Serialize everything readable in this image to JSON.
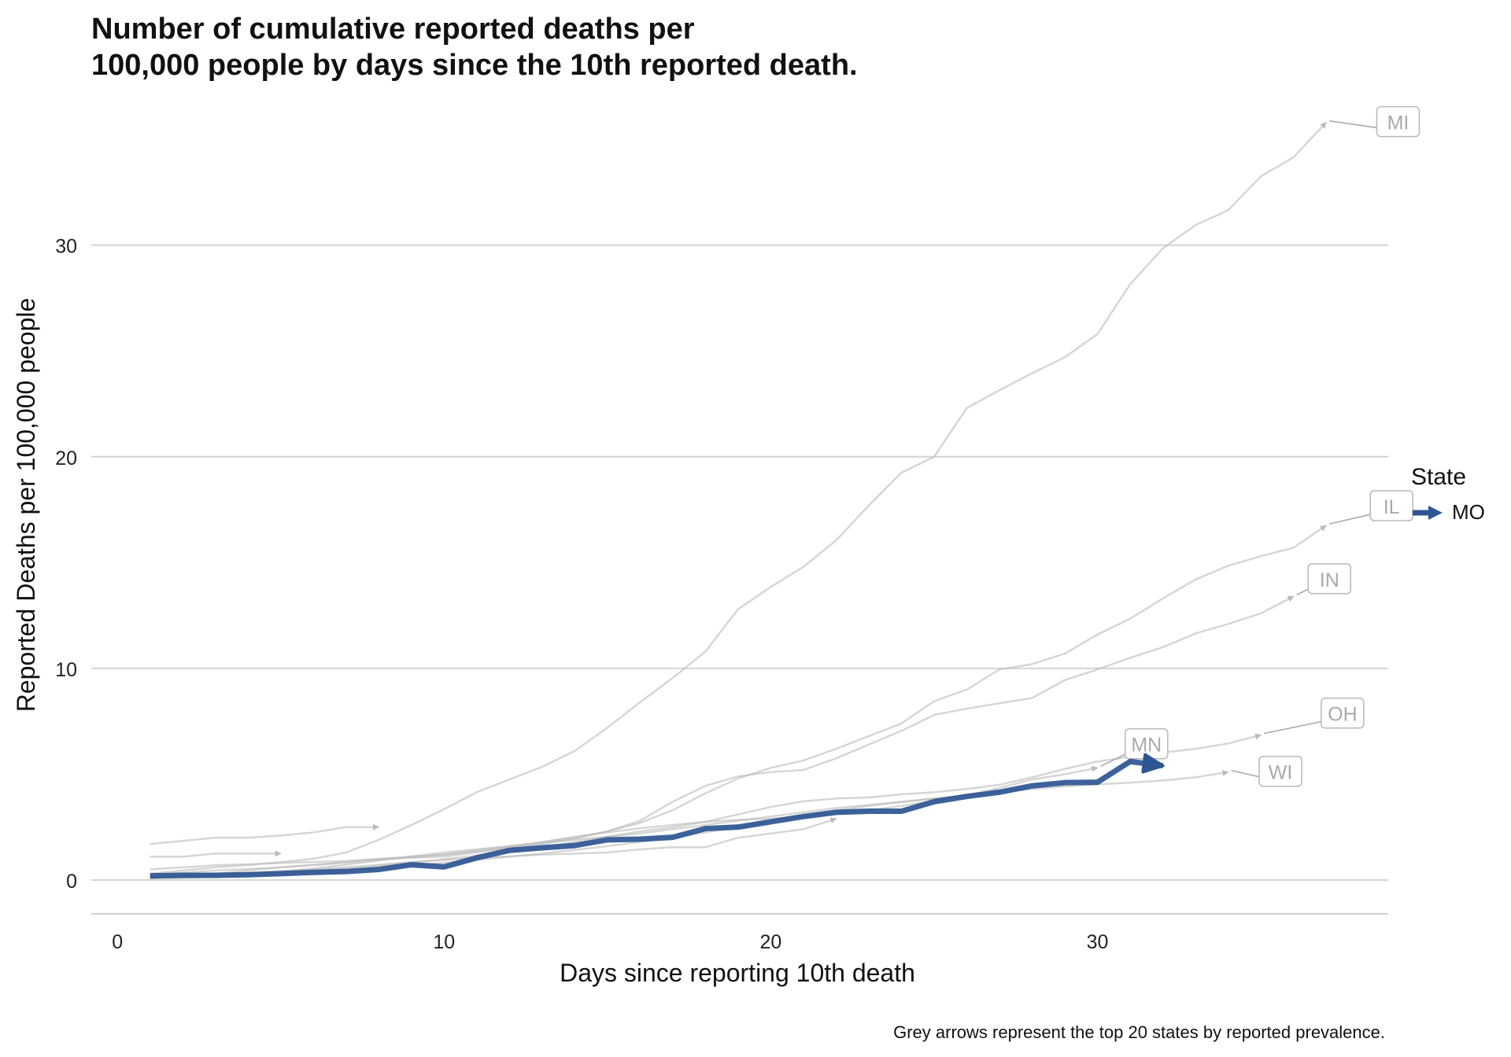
{
  "chart_data": {
    "type": "line",
    "title_lines": [
      "Number of cumulative reported deaths per",
      "100,000 people by days since the 10th reported death."
    ],
    "xlabel": "Days since reporting 10th death",
    "ylabel": "Reported Deaths per 100,000 people",
    "caption": "Grey arrows represent the top 20 states by reported prevalence.",
    "xlim": [
      -0.8,
      38.9
    ],
    "ylim": [
      -1.6,
      37.2
    ],
    "x_ticks": [
      "0",
      "10",
      "20",
      "30"
    ],
    "y_ticks": [
      "0",
      "10",
      "20",
      "30"
    ],
    "grid": "horizontal major only",
    "legend_title": "State",
    "legend_position": "right",
    "highlight_color": "#2d5592",
    "background_color": "#bbbbbb",
    "highlight_series": {
      "name": "MO",
      "x": [
        1,
        2,
        3,
        4,
        5,
        6,
        7,
        8,
        9,
        10,
        11,
        12,
        13,
        14,
        15,
        16,
        17,
        18,
        19,
        20,
        21,
        22,
        23,
        24,
        25,
        26,
        27,
        28,
        29,
        30,
        31,
        32
      ],
      "y": [
        0.2,
        0.22,
        0.22,
        0.25,
        0.3,
        0.36,
        0.4,
        0.5,
        0.72,
        0.62,
        1.05,
        1.4,
        1.52,
        1.63,
        1.9,
        1.93,
        2.02,
        2.43,
        2.5,
        2.75,
        3.0,
        3.2,
        3.25,
        3.25,
        3.7,
        3.95,
        4.15,
        4.45,
        4.6,
        4.62,
        5.6,
        5.4
      ]
    },
    "background_series": [
      {
        "name": "MI",
        "label": "MI",
        "x": [
          1,
          2,
          3,
          4,
          5,
          6,
          7,
          8,
          9,
          10,
          11,
          12,
          13,
          14,
          15,
          16,
          17,
          18,
          19,
          20,
          21,
          22,
          23,
          24,
          25,
          26,
          27,
          28,
          29,
          30,
          31,
          32,
          33,
          34,
          35,
          36,
          37
        ],
        "y": [
          0.3,
          0.45,
          0.6,
          0.7,
          0.85,
          1.0,
          1.3,
          1.9,
          2.6,
          3.35,
          4.15,
          4.75,
          5.35,
          6.1,
          7.2,
          8.4,
          9.55,
          10.8,
          12.8,
          13.85,
          14.8,
          16.05,
          17.7,
          19.25,
          20.0,
          22.3,
          23.15,
          23.95,
          24.7,
          25.8,
          28.15,
          29.85,
          30.95,
          31.65,
          33.25,
          34.15,
          35.8
        ]
      },
      {
        "name": "IL",
        "label": "IL",
        "x": [
          1,
          2,
          3,
          4,
          5,
          6,
          7,
          8,
          9,
          10,
          11,
          12,
          13,
          14,
          15,
          16,
          17,
          18,
          19,
          20,
          21,
          22,
          23,
          24,
          25,
          26,
          27,
          28,
          29,
          30,
          31,
          32,
          33,
          34,
          35,
          36,
          37
        ],
        "y": [
          0.1,
          0.18,
          0.25,
          0.33,
          0.42,
          0.55,
          0.72,
          0.92,
          1.12,
          1.3,
          1.45,
          1.6,
          1.78,
          2.0,
          2.3,
          2.7,
          3.3,
          4.1,
          4.8,
          5.3,
          5.65,
          6.2,
          6.8,
          7.4,
          8.45,
          9.0,
          9.95,
          10.2,
          10.7,
          11.6,
          12.35,
          13.3,
          14.2,
          14.85,
          15.3,
          15.7,
          16.75
        ]
      },
      {
        "name": "IN",
        "label": "IN",
        "x": [
          1,
          2,
          3,
          4,
          5,
          6,
          7,
          8,
          9,
          10,
          11,
          12,
          13,
          14,
          15,
          16,
          17,
          18,
          19,
          20,
          21,
          22,
          23,
          24,
          25,
          26,
          27,
          28,
          29,
          30,
          31,
          32,
          33,
          34,
          35,
          36
        ],
        "y": [
          0.25,
          0.35,
          0.45,
          0.52,
          0.6,
          0.7,
          0.82,
          0.95,
          1.08,
          1.2,
          1.35,
          1.5,
          1.7,
          1.95,
          2.3,
          2.8,
          3.7,
          4.45,
          4.9,
          5.1,
          5.2,
          5.75,
          6.4,
          7.05,
          7.8,
          8.1,
          8.35,
          8.6,
          9.45,
          9.95,
          10.5,
          11.0,
          11.65,
          12.1,
          12.6,
          13.4
        ]
      },
      {
        "name": "OH",
        "label": "OH",
        "x": [
          1,
          2,
          3,
          4,
          5,
          6,
          7,
          8,
          9,
          10,
          11,
          12,
          13,
          14,
          15,
          16,
          17,
          18,
          19,
          20,
          21,
          22,
          23,
          24,
          25,
          26,
          27,
          28,
          29,
          30,
          31,
          32,
          33,
          34,
          35
        ],
        "y": [
          0.1,
          0.15,
          0.2,
          0.28,
          0.36,
          0.45,
          0.55,
          0.68,
          0.82,
          0.98,
          1.15,
          1.35,
          1.55,
          1.8,
          2.05,
          2.3,
          2.5,
          2.75,
          3.1,
          3.45,
          3.72,
          3.85,
          3.9,
          4.05,
          4.15,
          4.3,
          4.5,
          4.85,
          5.25,
          5.6,
          5.82,
          6.02,
          6.2,
          6.45,
          6.85
        ]
      },
      {
        "name": "MN",
        "label": "MN",
        "x": [
          1,
          2,
          3,
          4,
          5,
          6,
          7,
          8,
          9,
          10,
          11,
          12,
          13,
          14,
          15,
          16,
          17,
          18,
          19,
          20,
          21,
          22,
          23,
          24,
          25,
          26,
          27,
          28,
          29,
          30
        ],
        "y": [
          0.5,
          0.6,
          0.7,
          0.75,
          0.8,
          0.85,
          0.9,
          1.0,
          1.05,
          1.1,
          1.3,
          1.55,
          1.8,
          2.05,
          2.25,
          2.45,
          2.6,
          2.75,
          2.85,
          2.9,
          3.0,
          3.15,
          3.3,
          3.5,
          3.75,
          4.0,
          4.35,
          4.75,
          5.0,
          5.3
        ]
      },
      {
        "name": "WI",
        "label": "WI",
        "x": [
          1,
          2,
          3,
          4,
          5,
          6,
          7,
          8,
          9,
          10,
          11,
          12,
          13,
          14,
          15,
          16,
          17,
          18,
          19,
          20,
          21,
          22,
          23,
          24,
          25,
          26,
          27,
          28,
          29,
          30,
          31,
          32,
          33,
          34
        ],
        "y": [
          0.1,
          0.2,
          0.3,
          0.45,
          0.6,
          0.72,
          0.85,
          1.0,
          1.1,
          1.2,
          1.4,
          1.6,
          1.75,
          1.9,
          2.05,
          2.2,
          2.4,
          2.6,
          2.8,
          3.0,
          3.2,
          3.4,
          3.55,
          3.7,
          3.85,
          4.0,
          4.15,
          4.3,
          4.42,
          4.52,
          4.6,
          4.7,
          4.85,
          5.1
        ]
      },
      {
        "name": "unlabeled-1",
        "x": [
          1,
          2,
          3,
          4,
          5,
          6,
          7,
          8
        ],
        "y": [
          1.7,
          1.85,
          2.0,
          2.0,
          2.1,
          2.25,
          2.5,
          2.5
        ]
      },
      {
        "name": "unlabeled-2",
        "x": [
          1,
          2,
          3,
          4,
          5
        ],
        "y": [
          1.1,
          1.1,
          1.25,
          1.25,
          1.25
        ]
      },
      {
        "name": "unlabeled-3",
        "x": [
          1,
          2,
          3,
          4,
          5,
          6,
          7,
          8,
          9,
          10,
          11,
          12,
          13,
          14,
          15,
          16,
          17,
          18,
          19,
          20,
          21,
          22
        ],
        "y": [
          0.15,
          0.2,
          0.25,
          0.32,
          0.4,
          0.5,
          0.6,
          0.72,
          0.85,
          0.95,
          1.05,
          1.12,
          1.2,
          1.25,
          1.3,
          1.45,
          1.55,
          1.55,
          2.0,
          2.2,
          2.4,
          2.9
        ]
      },
      {
        "name": "unlabeled-4",
        "x": [
          1,
          2,
          3,
          4,
          5,
          6,
          7,
          8,
          9,
          10,
          11,
          12,
          13,
          14,
          15,
          16,
          17,
          18,
          19,
          20,
          21,
          22,
          23,
          24,
          25,
          26,
          27
        ],
        "y": [
          0.05,
          0.1,
          0.15,
          0.2,
          0.28,
          0.36,
          0.46,
          0.58,
          0.7,
          0.82,
          0.95,
          1.1,
          1.25,
          1.42,
          1.6,
          1.8,
          2.02,
          2.25,
          2.5,
          2.78,
          3.05,
          3.3,
          3.5,
          3.68,
          3.85,
          4.0,
          4.2
        ]
      }
    ]
  }
}
